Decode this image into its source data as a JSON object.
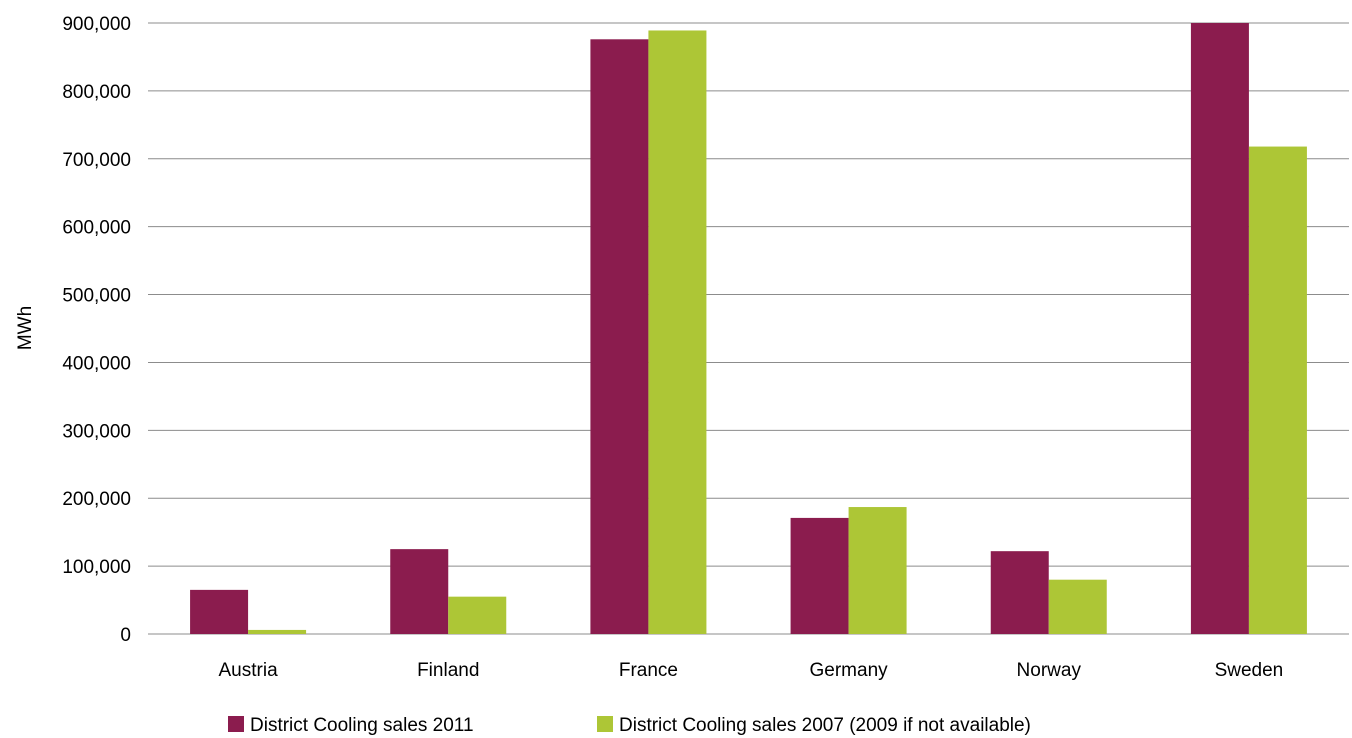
{
  "chart_data": {
    "type": "bar",
    "title": "",
    "xlabel": "",
    "ylabel": "MWh",
    "categories": [
      "Austria",
      "Finland",
      "France",
      "Germany",
      "Norway",
      "Sweden"
    ],
    "series": [
      {
        "name": "District Cooling sales 2011",
        "color": "#8b1c4e",
        "values": [
          65000,
          125000,
          876000,
          171000,
          122000,
          900000
        ]
      },
      {
        "name": "District Cooling sales 2007 (2009 if not available)",
        "color": "#adc636",
        "values": [
          6000,
          55000,
          889000,
          187000,
          80000,
          718000
        ]
      }
    ],
    "ylim": [
      0,
      900000
    ],
    "yticks": [
      0,
      100000,
      200000,
      300000,
      400000,
      500000,
      600000,
      700000,
      800000,
      900000
    ],
    "ytick_labels": [
      "0",
      "100,000",
      "200,000",
      "300,000",
      "400,000",
      "500,000",
      "600,000",
      "700,000",
      "800,000",
      "900,000"
    ],
    "grid": true,
    "legend_position": "bottom"
  }
}
